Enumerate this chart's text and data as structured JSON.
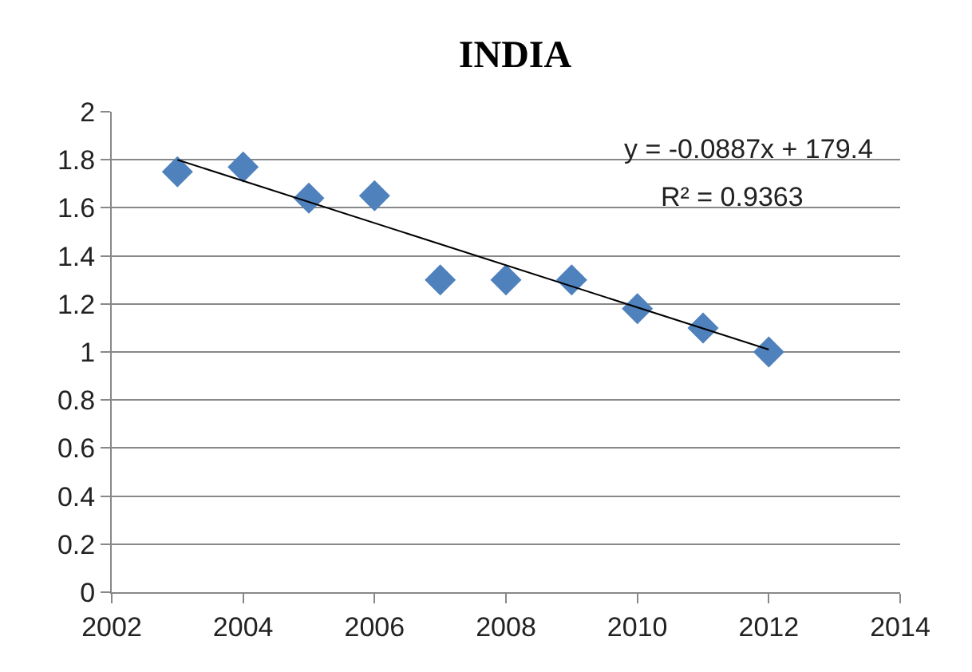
{
  "chart_data": {
    "type": "scatter",
    "title": "INDIA",
    "x": [
      2003,
      2004,
      2005,
      2006,
      2007,
      2008,
      2009,
      2010,
      2011,
      2012
    ],
    "series": [
      {
        "color": "#4f81bd",
        "values": [
          1.75,
          1.77,
          1.64,
          1.65,
          1.3,
          1.3,
          1.3,
          1.18,
          1.1,
          1.0
        ]
      },
      {
        "type": "line",
        "marker": "none",
        "color": "#000000",
        "x": [
          2003,
          2012
        ],
        "values": [
          1.8,
          1.01
        ]
      }
    ],
    "xlim": [
      2002,
      2014
    ],
    "xticks": [
      2002,
      2004,
      2006,
      2008,
      2010,
      2012,
      2014
    ],
    "ylim": [
      0,
      2
    ],
    "yticks": [
      0,
      0.2,
      0.4,
      0.6,
      0.8,
      1,
      1.2,
      1.4,
      1.6,
      1.8,
      2
    ],
    "grid": "y",
    "marker": "diamond",
    "annotations": [
      "y = -0.0887x + 179.4",
      "R² = 0.9363"
    ]
  }
}
